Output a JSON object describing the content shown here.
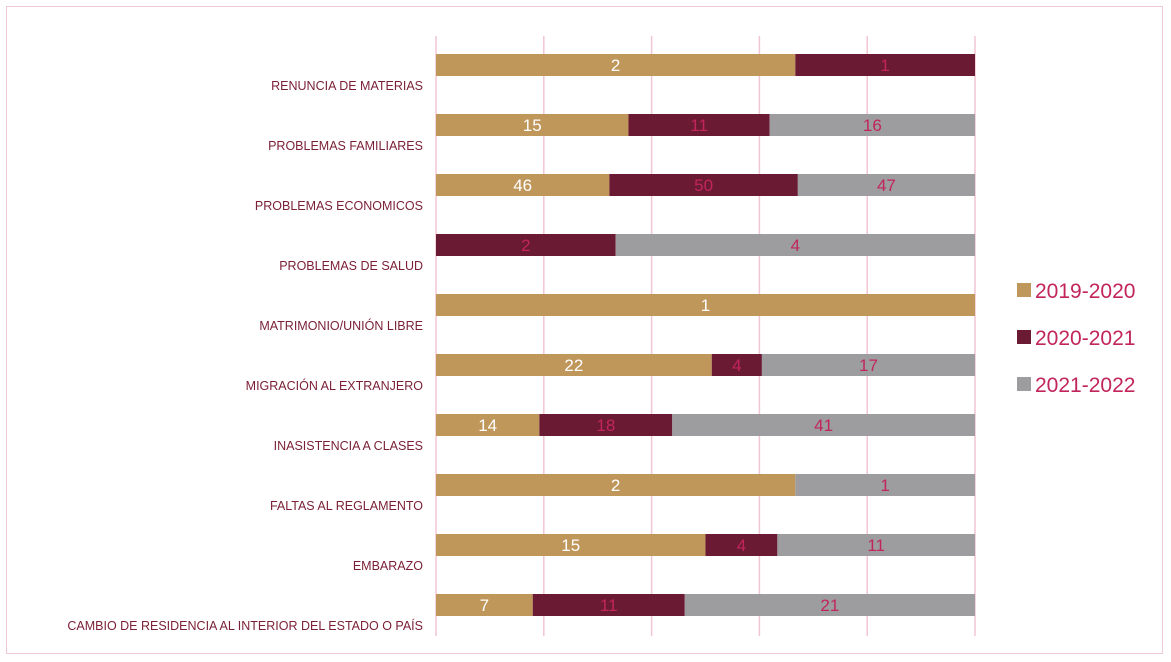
{
  "chart_data": {
    "type": "bar",
    "orientation": "horizontal",
    "stacked": "percent",
    "title": "",
    "xlabel": "",
    "ylabel": "",
    "grid": true,
    "legend_position": "right",
    "categories": [
      "RENUNCIA DE MATERIAS",
      "PROBLEMAS FAMILIARES",
      "PROBLEMAS ECONOMICOS",
      "PROBLEMAS DE SALUD",
      "MATRIMONIO/UNIÓN LIBRE",
      "MIGRACIÓN AL EXTRANJERO",
      "INASISTENCIA A CLASES",
      "FALTAS AL REGLAMENTO",
      "EMBARAZO",
      "CAMBIO DE RESIDENCIA AL INTERIOR DEL ESTADO O PAÍS"
    ],
    "series": [
      {
        "name": "2019-2020",
        "color": "#c0975b",
        "label_color": "#ffffff",
        "values": [
          2,
          15,
          46,
          0,
          1,
          22,
          14,
          2,
          15,
          7
        ]
      },
      {
        "name": "2020-2021",
        "color": "#6b1a34",
        "label_color": "#c2255c",
        "values": [
          1,
          11,
          50,
          2,
          0,
          4,
          18,
          0,
          4,
          11
        ]
      },
      {
        "name": "2021-2022",
        "color": "#9d9c9e",
        "label_color": "#c2255c",
        "values": [
          0,
          16,
          47,
          4,
          0,
          17,
          41,
          1,
          11,
          21
        ]
      }
    ]
  }
}
